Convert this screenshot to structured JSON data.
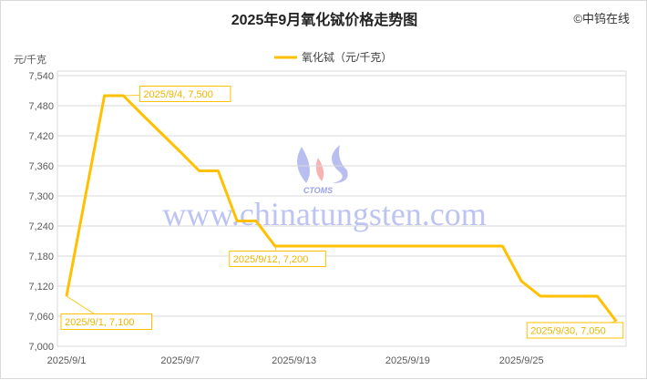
{
  "copyright": "©中钨在线",
  "watermark": {
    "logo_text": "CTOMS",
    "url": "www.chinatungsten.com"
  },
  "chart_data": {
    "type": "line",
    "title": "2025年9月氧化铽价格走势图",
    "ylabel": "元/千克",
    "xlabel": "",
    "legend": {
      "position": "top",
      "entries": [
        "氧化铽（元/千克）"
      ]
    },
    "grid": true,
    "ylim": [
      7000,
      7540
    ],
    "yticks": [
      7000,
      7060,
      7120,
      7180,
      7240,
      7300,
      7360,
      7420,
      7480,
      7540
    ],
    "ytick_labels": [
      "7,000",
      "7,060",
      "7,120",
      "7,180",
      "7,240",
      "7,300",
      "7,360",
      "7,420",
      "7,480",
      "7,540"
    ],
    "xtick_labels": [
      "2025/9/1",
      "2025/9/7",
      "2025/9/13",
      "2025/9/19",
      "2025/9/25"
    ],
    "colors": {
      "series": "#FFC000"
    },
    "series": [
      {
        "name": "氧化铽（元/千克）",
        "x": [
          "2025/9/1",
          "2025/9/2",
          "2025/9/3",
          "2025/9/4",
          "2025/9/5",
          "2025/9/6",
          "2025/9/7",
          "2025/9/8",
          "2025/9/9",
          "2025/9/10",
          "2025/9/11",
          "2025/9/12",
          "2025/9/13",
          "2025/9/14",
          "2025/9/15",
          "2025/9/16",
          "2025/9/17",
          "2025/9/18",
          "2025/9/19",
          "2025/9/20",
          "2025/9/21",
          "2025/9/22",
          "2025/9/23",
          "2025/9/24",
          "2025/9/25",
          "2025/9/26",
          "2025/9/27",
          "2025/9/28",
          "2025/9/29",
          "2025/9/30"
        ],
        "values": [
          7100,
          7300,
          7500,
          7500,
          7462,
          7425,
          7388,
          7350,
          7350,
          7250,
          7250,
          7200,
          7200,
          7200,
          7200,
          7200,
          7200,
          7200,
          7200,
          7200,
          7200,
          7200,
          7200,
          7200,
          7130,
          7100,
          7100,
          7100,
          7100,
          7050
        ]
      }
    ],
    "annotations": [
      {
        "x": "2025/9/1",
        "label": "2025/9/1, 7,100"
      },
      {
        "x": "2025/9/4",
        "label": "2025/9/4, 7,500"
      },
      {
        "x": "2025/9/12",
        "label": "2025/9/12, 7,200"
      },
      {
        "x": "2025/9/30",
        "label": "2025/9/30, 7,050"
      }
    ]
  }
}
